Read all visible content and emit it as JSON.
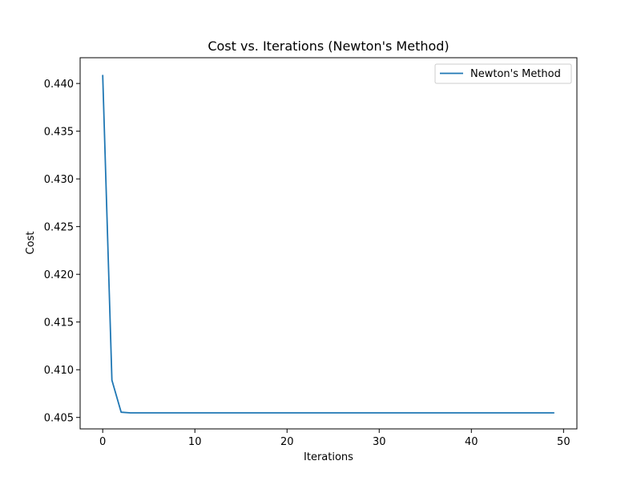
{
  "chart_data": {
    "type": "line",
    "title": "Cost vs. Iterations (Newton's Method)",
    "xlabel": "Iterations",
    "ylabel": "Cost",
    "xlim": [
      -2.45,
      51.45
    ],
    "ylim": [
      0.4038,
      0.4427
    ],
    "xticks": [
      0,
      10,
      20,
      30,
      40,
      50
    ],
    "yticks": [
      0.405,
      0.41,
      0.415,
      0.42,
      0.425,
      0.43,
      0.435,
      0.44
    ],
    "ytick_labels": [
      "0.405",
      "0.410",
      "0.415",
      "0.420",
      "0.425",
      "0.430",
      "0.435",
      "0.440"
    ],
    "grid": false,
    "legend": {
      "position": "top-right",
      "entries": [
        "Newton's Method"
      ]
    },
    "series": [
      {
        "name": "Newton's Method",
        "color": "#1f77b4",
        "x": [
          0,
          1,
          2,
          3,
          4,
          5,
          6,
          7,
          8,
          9,
          10,
          11,
          12,
          13,
          14,
          15,
          16,
          17,
          18,
          19,
          20,
          21,
          22,
          23,
          24,
          25,
          26,
          27,
          28,
          29,
          30,
          31,
          32,
          33,
          34,
          35,
          36,
          37,
          38,
          39,
          40,
          41,
          42,
          43,
          44,
          45,
          46,
          47,
          48,
          49
        ],
        "y": [
          0.4409,
          0.4089,
          0.40555,
          0.40548,
          0.40548,
          0.40548,
          0.40548,
          0.40548,
          0.40548,
          0.40548,
          0.40548,
          0.40548,
          0.40548,
          0.40548,
          0.40548,
          0.40548,
          0.40548,
          0.40548,
          0.40548,
          0.40548,
          0.40548,
          0.40548,
          0.40548,
          0.40548,
          0.40548,
          0.40548,
          0.40548,
          0.40548,
          0.40548,
          0.40548,
          0.40548,
          0.40548,
          0.40548,
          0.40548,
          0.40548,
          0.40548,
          0.40548,
          0.40548,
          0.40548,
          0.40548,
          0.40548,
          0.40548,
          0.40548,
          0.40548,
          0.40548,
          0.40548,
          0.40548,
          0.40548,
          0.40548,
          0.40548
        ]
      }
    ]
  }
}
